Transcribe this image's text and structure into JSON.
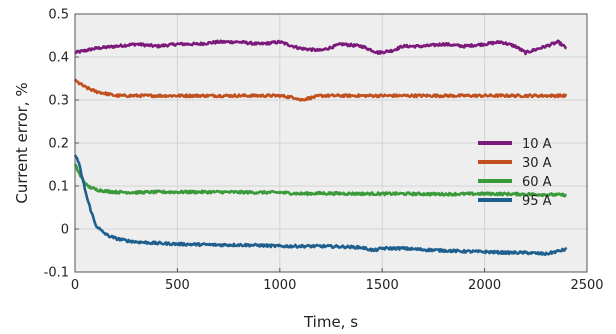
{
  "chart_data": {
    "type": "line",
    "title": "",
    "xlabel": "Time, s",
    "ylabel": "Current error, %",
    "xlim": [
      0,
      2500
    ],
    "ylim": [
      -0.1,
      0.5
    ],
    "xticks": [
      0,
      500,
      1000,
      1500,
      2000,
      2500
    ],
    "yticks": [
      -0.1,
      0,
      0.1,
      0.2,
      0.3,
      0.4,
      0.5
    ],
    "xtick_labels": [
      "0",
      "500",
      "1000",
      "1500",
      "2000",
      "2500"
    ],
    "ytick_labels": [
      "-0.1",
      "0",
      "0.1",
      "0.2",
      "0.3",
      "0.4",
      "0.5"
    ],
    "grid": true,
    "legend_position": "right",
    "background": "#eeeeee",
    "series": [
      {
        "name": "10 A",
        "color": "#7b1a7a",
        "x": [
          0,
          50,
          100,
          200,
          300,
          400,
          500,
          600,
          700,
          800,
          900,
          1000,
          1100,
          1200,
          1300,
          1400,
          1480,
          1550,
          1600,
          1700,
          1800,
          1900,
          2000,
          2080,
          2150,
          2200,
          2300,
          2360,
          2400
        ],
        "y": [
          0.41,
          0.415,
          0.42,
          0.425,
          0.43,
          0.425,
          0.43,
          0.43,
          0.435,
          0.435,
          0.43,
          0.435,
          0.42,
          0.415,
          0.43,
          0.425,
          0.41,
          0.415,
          0.425,
          0.425,
          0.43,
          0.425,
          0.43,
          0.435,
          0.425,
          0.41,
          0.425,
          0.435,
          0.42
        ]
      },
      {
        "name": "30 A",
        "color": "#c0501e",
        "x": [
          0,
          50,
          100,
          150,
          200,
          300,
          400,
          500,
          700,
          900,
          1000,
          1080,
          1100,
          1200,
          1400,
          1600,
          1800,
          2000,
          2200,
          2400
        ],
        "y": [
          0.345,
          0.33,
          0.32,
          0.315,
          0.31,
          0.31,
          0.31,
          0.31,
          0.31,
          0.31,
          0.31,
          0.305,
          0.3,
          0.31,
          0.31,
          0.31,
          0.31,
          0.31,
          0.31,
          0.31
        ]
      },
      {
        "name": "60 A",
        "color": "#3a9a3a",
        "x": [
          0,
          30,
          60,
          100,
          150,
          200,
          300,
          400,
          500,
          700,
          900,
          1000,
          1100,
          1200,
          1400,
          1600,
          1800,
          2000,
          2200,
          2400
        ],
        "y": [
          0.15,
          0.12,
          0.1,
          0.092,
          0.088,
          0.086,
          0.085,
          0.086,
          0.086,
          0.086,
          0.085,
          0.085,
          0.082,
          0.083,
          0.082,
          0.082,
          0.081,
          0.082,
          0.081,
          0.079
        ]
      },
      {
        "name": "95 A",
        "color": "#1e5f8e",
        "x": [
          0,
          10,
          20,
          40,
          60,
          80,
          100,
          130,
          160,
          200,
          250,
          300,
          400,
          500,
          600,
          700,
          800,
          900,
          1000,
          1100,
          1200,
          1300,
          1400,
          1460,
          1500,
          1600,
          1700,
          1800,
          1900,
          2000,
          2100,
          2200,
          2300,
          2400
        ],
        "y": [
          0.17,
          0.165,
          0.15,
          0.11,
          0.07,
          0.04,
          0.01,
          -0.005,
          -0.015,
          -0.022,
          -0.027,
          -0.03,
          -0.033,
          -0.035,
          -0.036,
          -0.037,
          -0.037,
          -0.038,
          -0.04,
          -0.04,
          -0.04,
          -0.041,
          -0.043,
          -0.05,
          -0.045,
          -0.045,
          -0.048,
          -0.05,
          -0.052,
          -0.053,
          -0.055,
          -0.055,
          -0.058,
          -0.047
        ]
      }
    ]
  }
}
